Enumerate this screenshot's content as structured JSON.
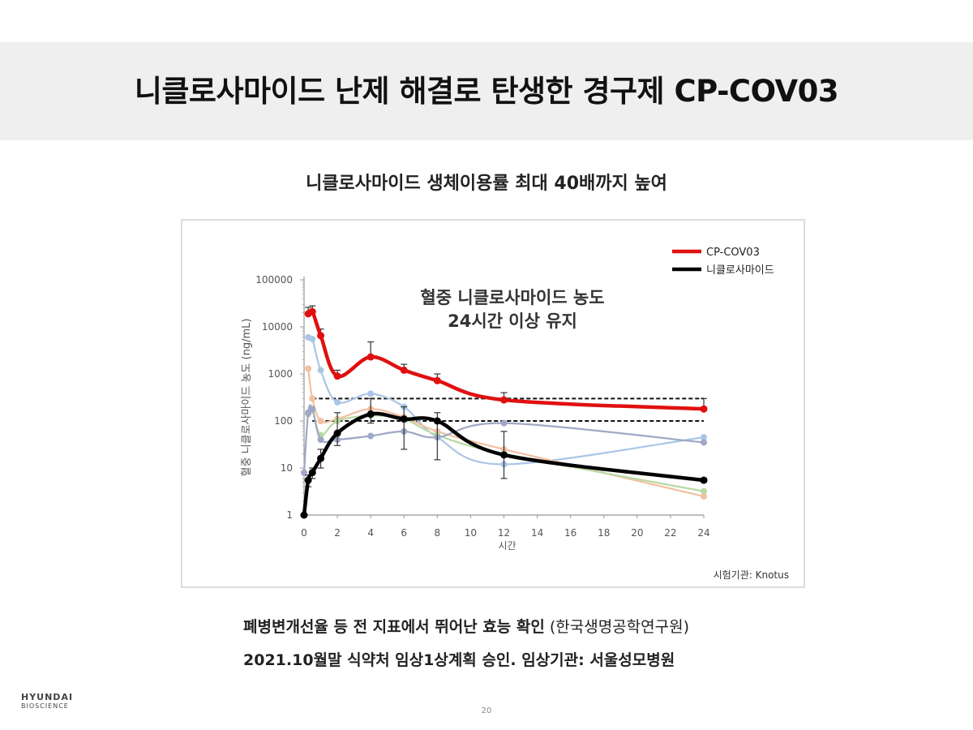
{
  "slide": {
    "title": "니클로사마이드 난제 해결로 탄생한 경구제 CP-COV03",
    "subtitle": "니클로사마이드 생체이용률 최대 40배까지 높여",
    "note1_bold": "폐병변개선율 등 전 지표에서 뛰어난 효능 확인",
    "note1_light": " (한국생명공학연구원)",
    "note2": "2021.10월말 식약처 임상1상계획 승인. 임상기관: 서울성모병원",
    "logo_line1": "HYUNDAI",
    "logo_line2": "BIOSCIENCE",
    "page_number": "20"
  },
  "chart_data": {
    "type": "line",
    "title": "",
    "annotation": [
      "혈중 니클로사마이드 농도",
      "24시간 이상 유지"
    ],
    "xlabel": "시간",
    "ylabel": "혈중 니클로사마이드 농도 (ng/mL)",
    "source": "시험기관: Knotus",
    "y_scale": "log",
    "xlim": [
      0,
      24
    ],
    "ylim": [
      1,
      100000
    ],
    "x_ticks": [
      0,
      2,
      4,
      6,
      8,
      10,
      12,
      14,
      16,
      18,
      20,
      22,
      24
    ],
    "y_ticks": [
      1,
      10,
      100,
      1000,
      10000,
      100000
    ],
    "y_tick_labels": [
      "1",
      "10",
      "100",
      "1000",
      "10000",
      "100000"
    ],
    "legend_position": "top-right",
    "reference_lines": [
      300,
      100
    ],
    "series": [
      {
        "name": "CP-COV03",
        "color": "#e01010",
        "bold": true,
        "x": [
          0.25,
          0.5,
          1,
          2,
          4,
          6,
          8,
          12,
          24
        ],
        "y": [
          19000,
          21000,
          6500,
          900,
          2300,
          1200,
          720,
          280,
          180
        ],
        "err_hi": [
          26000,
          28000,
          9000,
          1200,
          4800,
          1600,
          1000,
          400,
          300
        ]
      },
      {
        "name": "니클로사마이드",
        "color": "#000000",
        "bold": true,
        "x": [
          0,
          0.25,
          0.5,
          1,
          2,
          4,
          6,
          8,
          12,
          24
        ],
        "y": [
          1,
          5.5,
          8,
          16,
          55,
          140,
          110,
          100,
          19,
          5.5
        ],
        "err_lo": [
          1,
          4,
          6,
          10,
          30,
          90,
          25,
          15,
          6,
          5
        ],
        "err_hi": [
          1,
          7,
          10,
          25,
          150,
          300,
          200,
          150,
          60,
          6
        ]
      },
      {
        "name": "",
        "color": "#a9c6e6",
        "bold": false,
        "x": [
          0.25,
          0.5,
          1,
          2,
          4,
          6,
          8,
          12,
          24
        ],
        "y": [
          6000,
          5500,
          1200,
          250,
          380,
          200,
          45,
          12,
          45
        ]
      },
      {
        "name": "",
        "color": "#f2bfa0",
        "bold": false,
        "x": [
          0.25,
          0.5,
          1,
          2,
          4,
          6,
          8,
          12,
          24
        ],
        "y": [
          1300,
          300,
          100,
          110,
          180,
          120,
          60,
          25,
          2.5
        ]
      },
      {
        "name": "",
        "color": "#b8d9a3",
        "bold": false,
        "x": [
          0.25,
          0.5,
          1,
          2,
          4,
          6,
          8,
          12,
          24
        ],
        "y": [
          140,
          170,
          50,
          100,
          130,
          110,
          50,
          20,
          3.2
        ]
      },
      {
        "name": "",
        "color": "#9fa8c4",
        "bold": false,
        "x": [
          0,
          0.25,
          0.5,
          1,
          2,
          4,
          6,
          8,
          12,
          24
        ],
        "y": [
          8,
          150,
          180,
          40,
          40,
          48,
          60,
          45,
          90,
          35
        ]
      }
    ]
  }
}
